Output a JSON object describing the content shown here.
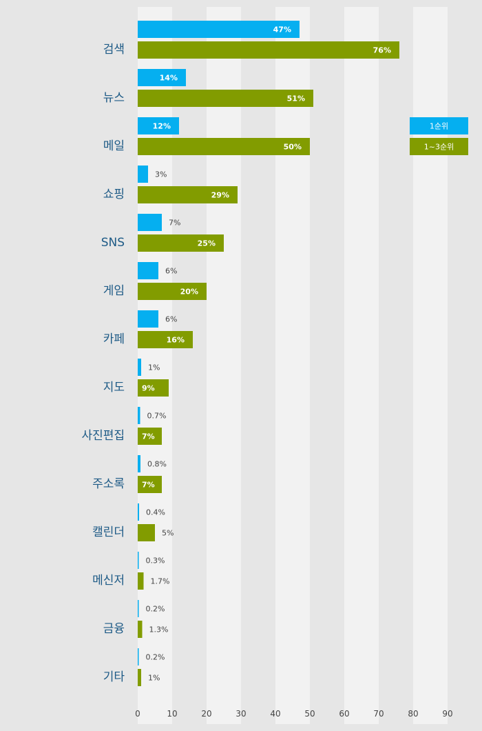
{
  "chart_data": {
    "type": "bar",
    "orientation": "horizontal",
    "categories": [
      "검색",
      "뉴스",
      "메일",
      "쇼핑",
      "SNS",
      "게임",
      "카페",
      "지도",
      "사진편집",
      "주소록",
      "캘린더",
      "메신저",
      "금융",
      "기타"
    ],
    "series": [
      {
        "name": "1순위",
        "color": "#05aff0",
        "values": [
          47,
          14,
          12,
          3,
          7,
          6,
          6,
          1,
          0.7,
          0.8,
          0.4,
          0.3,
          0.2,
          0.2
        ],
        "labels": [
          "47%",
          "14%",
          "12%",
          "3%",
          "7%",
          "6%",
          "6%",
          "1%",
          "0.7%",
          "0.8%",
          "0.4%",
          "0.3%",
          "0.2%",
          "0.2%"
        ]
      },
      {
        "name": "1~3순위",
        "color": "#829c00",
        "values": [
          76,
          51,
          50,
          29,
          25,
          20,
          16,
          9,
          7,
          7,
          5,
          1.7,
          1.3,
          1
        ],
        "labels": [
          "76%",
          "51%",
          "50%",
          "29%",
          "25%",
          "20%",
          "16%",
          "9%",
          "7%",
          "7%",
          "5%",
          "1.7%",
          "1.3%",
          "1%"
        ]
      }
    ],
    "xlim": [
      0,
      100
    ],
    "xticks": [
      0,
      10,
      20,
      30,
      40,
      50,
      60,
      70,
      80,
      90
    ],
    "legend_position": "right",
    "colors": {
      "category_label": "#1d5a86",
      "band_light": "#f2f2f2",
      "band_dark": "#e6e6e6",
      "label_inside": "#ffffff",
      "label_outside": "#444444",
      "tick": "#444444"
    }
  }
}
